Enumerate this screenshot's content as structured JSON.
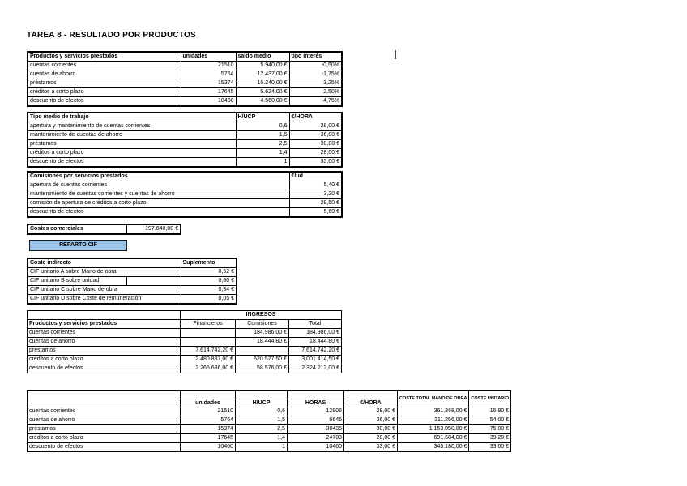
{
  "page": {
    "title": "TAREA 8 - RESULTADO POR PRODUCTOS"
  },
  "colors": {
    "row_blue": "#BDD7EE",
    "header_tan": "#FCE9D9",
    "header_pink": "#FAE0D8",
    "header_green": "#E2EFDA",
    "gray": "#D9D9D9",
    "button_blue": "#9BC3E6"
  },
  "buttons": {
    "reparto_cif": "REPARTO CIF"
  },
  "tables": {
    "productos": {
      "headers": [
        "Productos y servicios prestados",
        "unidades",
        "saldo medio",
        "tipo interés"
      ],
      "rows": [
        [
          "cuentas corrientes",
          "21510",
          "5.940,00 €",
          "-0,50%"
        ],
        [
          "cuentas de ahorro",
          "5764",
          "12.437,00 €",
          "-1,75%"
        ],
        [
          "préstamos",
          "15374",
          "15.240,00 €",
          "3,25%"
        ],
        [
          "créditos a corto plazo",
          "17645",
          "5.624,00 €",
          "2,50%"
        ],
        [
          "descuento de efectos",
          "10460",
          "4.560,00 €",
          "4,75%"
        ]
      ]
    },
    "trabajo": {
      "headers": [
        "Tipo medio de trabajo",
        "H/UCP",
        "€/HORA"
      ],
      "rows": [
        [
          "apertura y mantenimiento de cuentas corrientes",
          "0,6",
          "28,00 €"
        ],
        [
          "mantenimiento de cuentas de ahorro",
          "1,5",
          "36,00 €"
        ],
        [
          "préstamos",
          "2,5",
          "30,00 €"
        ],
        [
          "créditos a corto plazo",
          "1,4",
          "28,00 €"
        ],
        [
          "descuento de efectos",
          "1",
          "33,00 €"
        ]
      ]
    },
    "comisiones": {
      "headers": [
        "Comisiones por servicios prestados",
        "€/ud"
      ],
      "rows": [
        [
          "apertura de cuentas corrientes",
          "5,40 €"
        ],
        [
          "mantenimiento de cuentas corrientes y cuentas de ahorro",
          "3,20 €"
        ],
        [
          "comisión de apertura de créditos a corto plazo",
          "29,50 €"
        ],
        [
          "descuento de efectos",
          "5,60 €"
        ]
      ]
    },
    "costes_comerciales": {
      "label": "Costes comerciales",
      "value": "197.640,00 €"
    },
    "coste_indirecto": {
      "headers": [
        "Coste indirecto",
        "Suplemento"
      ],
      "rows": [
        [
          "CIF unitario A sobre Mano de obra",
          "0,52 €"
        ],
        [
          "CIF unitario B sobre unidad",
          "0,80 €"
        ],
        [
          "CIF unitario C sobre Mano de obra",
          "0,34 €"
        ],
        [
          "CIF unitario D sobre Coste de remuneración",
          "0,05 €"
        ]
      ]
    },
    "ingresos": {
      "group_header": "INGRESOS",
      "headers": [
        "Productos y servicios prestados",
        "Financieros",
        "Comisiones",
        "Total"
      ],
      "rows": [
        [
          "cuentas corrientes",
          "",
          "184.986,00 €",
          "184.986,00 €"
        ],
        [
          "cuentas de ahorro",
          "",
          "18.444,80 €",
          "18.444,80 €"
        ],
        [
          "préstamos",
          "7.614.742,20 €",
          "",
          "7.614.742,20 €"
        ],
        [
          "créditos a corto plazo",
          "2.480.887,00 €",
          "520.527,50 €",
          "3.001.414,50 €"
        ],
        [
          "descuento de efectos",
          "2.265.636,00 €",
          "58.576,00 €",
          "2.324.212,00 €"
        ]
      ]
    },
    "coste_unitario": {
      "headers": [
        "unidades",
        "H/UCP",
        "HORAS",
        "€/HORA",
        "COSTE TOTAL MANO DE OBRA",
        "COSTE UNITARIO"
      ],
      "rows": [
        [
          "cuentas corrientes",
          "21510",
          "0,6",
          "12906",
          "28,00 €",
          "361.368,00 €",
          "16,80 €"
        ],
        [
          "cuentas de ahorro",
          "5764",
          "1,5",
          "8646",
          "36,00 €",
          "311.256,00 €",
          "54,00 €"
        ],
        [
          "préstamos",
          "15374",
          "2,5",
          "38435",
          "30,00 €",
          "1.153.050,00 €",
          "75,00 €"
        ],
        [
          "créditos a corto plazo",
          "17645",
          "1,4",
          "24703",
          "28,00 €",
          "691.684,00 €",
          "39,20 €"
        ],
        [
          "descuento de efectos",
          "10460",
          "1",
          "10460",
          "33,00 €",
          "345.180,00 €",
          "33,00 €"
        ]
      ]
    }
  }
}
